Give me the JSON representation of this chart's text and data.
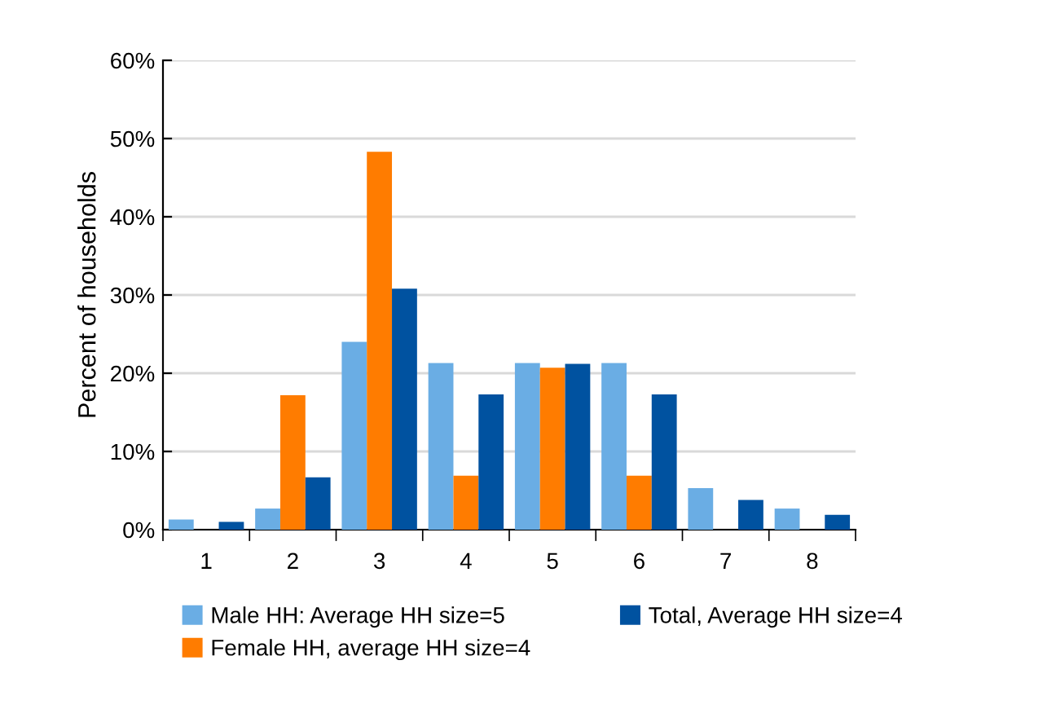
{
  "chart_data": {
    "type": "bar",
    "ylabel": "Percent of households",
    "categories": [
      "1",
      "2",
      "3",
      "4",
      "5",
      "6",
      "7",
      "8"
    ],
    "series": [
      {
        "name": "Male HH: Average HH size=5",
        "color": "#6aade4",
        "values": [
          1.3,
          2.7,
          24,
          21.3,
          21.3,
          21.3,
          5.3,
          2.7
        ]
      },
      {
        "name": "Female HH, average HH size=4",
        "color": "#ff7c00",
        "values": [
          0,
          17.2,
          48.3,
          6.9,
          20.7,
          6.9,
          0,
          0
        ]
      },
      {
        "name": "Total, Average HH size=4",
        "color": "#0052a0",
        "values": [
          1.0,
          6.7,
          30.8,
          17.3,
          21.2,
          17.3,
          3.8,
          1.9
        ]
      }
    ],
    "ylim": [
      0,
      60
    ],
    "yticks": [
      {
        "value": 0,
        "label": "0%"
      },
      {
        "value": 10,
        "label": "10%"
      },
      {
        "value": 20,
        "label": "20%"
      },
      {
        "value": 30,
        "label": "30%"
      },
      {
        "value": 40,
        "label": "40%"
      },
      {
        "value": 50,
        "label": "50%"
      },
      {
        "value": 60,
        "label": "60%"
      }
    ],
    "grid": "y",
    "legend": "bottom"
  }
}
